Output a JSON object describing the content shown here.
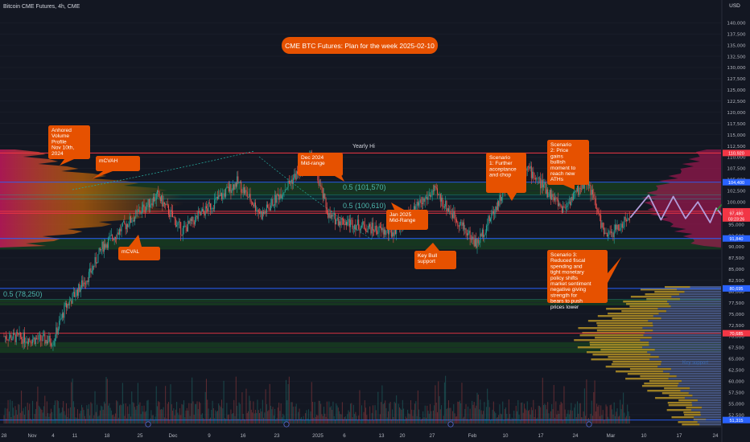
{
  "header": {
    "symbol_title": "Bitcoin CME Futures, 4h, CME",
    "currency": "USD"
  },
  "colors": {
    "background": "#131722",
    "bull": "#26a69a",
    "bear": "#ef5350",
    "callout": "#e65100",
    "blue_line": "#2962ff",
    "red_line": "#f23645",
    "green_zone": "#1b5e20",
    "scenario1": "#b39ddb",
    "scenario2": "#2e7d32",
    "scenario3": "#e53935",
    "volume_profile_left": "#c2185b",
    "volume_profile_orange": "#f57c00",
    "volume_profile_gold": "#c9a227"
  },
  "chart_data": {
    "type": "candlestick",
    "title": "CME BTC Futures: Plan for the week 2025-02-10",
    "timeframe": "4h",
    "ylim": [
      50000,
      141000
    ],
    "y_ticks": [
      52500,
      55000,
      57500,
      60000,
      62500,
      65000,
      67500,
      70000,
      72500,
      75000,
      77500,
      80000,
      82500,
      85000,
      87500,
      90000,
      92500,
      95000,
      97500,
      100000,
      102500,
      105000,
      107500,
      110000,
      112500,
      115000,
      117500,
      120000,
      122500,
      125000,
      127500,
      130000,
      132500,
      135000,
      137500,
      140000
    ],
    "x_tick_labels": [
      "28",
      "Nov",
      "4",
      "11",
      "18",
      "25",
      "Dec",
      "9",
      "16",
      "23",
      "2025",
      "6",
      "13",
      "20",
      "27",
      "Feb",
      "10",
      "17",
      "24",
      "Mar",
      "10",
      "17",
      "24"
    ],
    "price_path_anchors": [
      {
        "date": "2024-10-28",
        "price": 70000
      },
      {
        "date": "2024-11-05",
        "price": 69000
      },
      {
        "date": "2024-11-07",
        "price": 76500
      },
      {
        "date": "2024-11-11",
        "price": 84000
      },
      {
        "date": "2024-11-13",
        "price": 90000
      },
      {
        "date": "2024-11-22",
        "price": 101500
      },
      {
        "date": "2024-11-26",
        "price": 93500
      },
      {
        "date": "2024-12-05",
        "price": 104500
      },
      {
        "date": "2024-12-09",
        "price": 97000
      },
      {
        "date": "2024-12-17",
        "price": 110000
      },
      {
        "date": "2024-12-20",
        "price": 96500
      },
      {
        "date": "2024-12-30",
        "price": 93000
      },
      {
        "date": "2025-01-06",
        "price": 102500
      },
      {
        "date": "2025-01-13",
        "price": 90500
      },
      {
        "date": "2025-01-20",
        "price": 109500
      },
      {
        "date": "2025-01-27",
        "price": 98500
      },
      {
        "date": "2025-01-31",
        "price": 105000
      },
      {
        "date": "2025-02-03",
        "price": 92000
      },
      {
        "date": "2025-02-07",
        "price": 96500
      }
    ],
    "horizontal_levels": [
      {
        "price": 110920,
        "label": "110,920",
        "color": "#f23645"
      },
      {
        "price": 104400,
        "label": "104,400",
        "color": "#2962ff"
      },
      {
        "price": 97905,
        "label": "97,905",
        "color": "#f23645"
      },
      {
        "price": 97480,
        "label": "97,480",
        "color": "#f23645"
      },
      {
        "price": 91840,
        "label": "91,840",
        "color": "#2962ff"
      },
      {
        "price": 80695,
        "label": "80,695",
        "color": "#2962ff"
      },
      {
        "price": 70685,
        "label": "70,685",
        "color": "#f23645"
      },
      {
        "price": 51315,
        "label": "51,315",
        "color": "#2962ff"
      }
    ],
    "price_label_sub": "03:23:26",
    "zones": [
      {
        "from": 101570,
        "to": 104400,
        "color": "#1b5e20"
      },
      {
        "from": 89400,
        "to": 91840,
        "color": "#1b5e20"
      },
      {
        "from": 76900,
        "to": 78250,
        "color": "#1b5e20"
      },
      {
        "from": 66300,
        "to": 68700,
        "color": "#1b5e20"
      }
    ],
    "scenario_paths": [
      {
        "name": "Scenario 1",
        "color": "#b39ddb",
        "points": [
          [
            "2025-02-07",
            96500
          ],
          [
            "2025-02-10",
            101500
          ],
          [
            "2025-02-12",
            96000
          ],
          [
            "2025-02-14",
            101200
          ],
          [
            "2025-02-16",
            96300
          ],
          [
            "2025-02-18",
            100000
          ],
          [
            "2025-02-20",
            95400
          ],
          [
            "2025-02-21",
            98600
          ],
          [
            "2025-02-23",
            95200
          ]
        ]
      },
      {
        "name": "Scenario 2",
        "color": "#2e7d32",
        "points": [
          [
            "2025-02-21",
            98000
          ],
          [
            "2025-02-23",
            101200
          ],
          [
            "2025-02-25",
            99500
          ],
          [
            "2025-02-27",
            104500
          ],
          [
            "2025-02-28",
            103200
          ],
          [
            "2025-03-02",
            109000
          ],
          [
            "2025-03-03",
            108000
          ],
          [
            "2025-03-05",
            113500
          ]
        ]
      },
      {
        "name": "Scenario 3",
        "color": "#e53935",
        "points": [
          [
            "2025-02-24",
            97800
          ],
          [
            "2025-02-26",
            95200
          ],
          [
            "2025-02-28",
            96000
          ],
          [
            "2025-03-02",
            91800
          ],
          [
            "2025-03-04",
            93500
          ],
          [
            "2025-03-10",
            80500
          ]
        ]
      }
    ],
    "annotations": {
      "yearly_hi": "Yearly Hi",
      "fib_1": "0.5 (101,570)",
      "fib_2": "0.5 (100,610)",
      "fib_3": "0.5 (78,250)",
      "callout_anchored_vp": "Anhored Volume Profile Nov 10th, 2024",
      "callout_mcvah": "mCVAH",
      "callout_mcval": "mCVAL",
      "callout_dec2024": "Dec 2024 Mid-range",
      "callout_jan2025": "Jan 2025 Mid-Range",
      "callout_key_bull": "Key Bull support",
      "callout_scenario1": "Scenario 1: Further acceptance and chop",
      "callout_scenario2": "Scenario 2: Price gains bullish moment to reach new ATHs",
      "callout_scenario3": "Scenario 3: Reduced fiscal spending and tight monetary policy shifts market sentiment negative giving strength for bears to push prices lower",
      "faint_label": "Key support"
    }
  }
}
